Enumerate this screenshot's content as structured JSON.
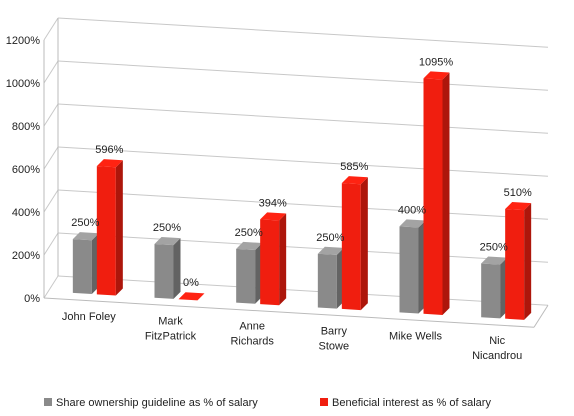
{
  "chart_data": {
    "type": "bar",
    "title": "",
    "xlabel": "",
    "ylabel": "",
    "ylim": [
      0,
      1200
    ],
    "yticks": [
      0,
      200,
      400,
      600,
      800,
      1000,
      1200
    ],
    "ytick_labels": [
      "0%",
      "200%",
      "400%",
      "600%",
      "800%",
      "1000%",
      "1200%"
    ],
    "grid": true,
    "style": "3d",
    "legend_position": "bottom",
    "categories": [
      [
        "John Foley"
      ],
      [
        "Mark",
        "FitzPatrick"
      ],
      [
        "Anne",
        "Richards"
      ],
      [
        "Barry",
        "Stowe"
      ],
      [
        "Mike Wells"
      ],
      [
        "Nic",
        "Nicandrou"
      ]
    ],
    "series": [
      {
        "name": "Share ownership guideline as % of salary",
        "color": "#8a8a8a",
        "values": [
          250,
          250,
          250,
          250,
          400,
          250
        ],
        "labels": [
          "250%",
          "250%",
          "250%",
          "250%",
          "400%",
          "250%"
        ]
      },
      {
        "name": "Beneficial interest as % of salary",
        "color": "#f01e0f",
        "values": [
          596,
          0,
          394,
          585,
          1095,
          510
        ],
        "labels": [
          "596%",
          "0%",
          "394%",
          "585%",
          "1095%",
          "510%"
        ]
      }
    ]
  }
}
